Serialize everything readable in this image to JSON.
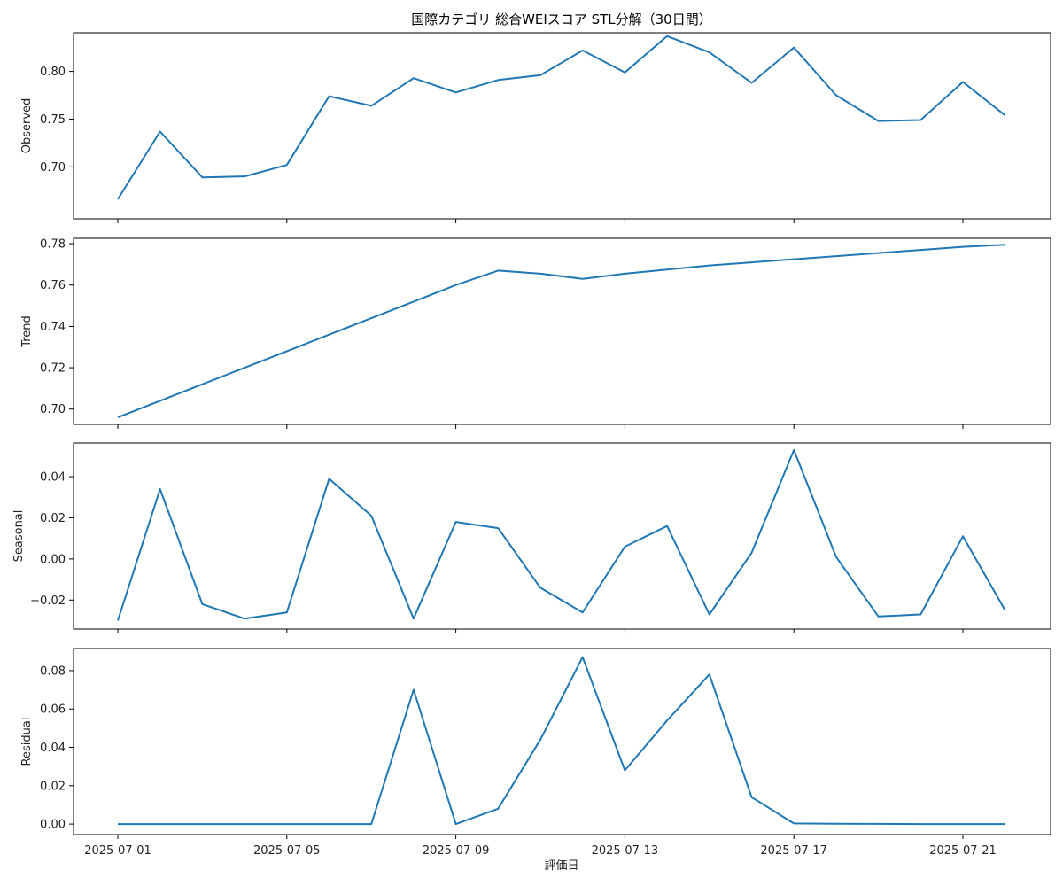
{
  "chart_data": {
    "type": "line",
    "title": "国際カテゴリ 総合WEIスコア STL分解（30日間）",
    "xlabel": "評価日",
    "x": [
      "2025-07-01",
      "2025-07-02",
      "2025-07-03",
      "2025-07-04",
      "2025-07-05",
      "2025-07-06",
      "2025-07-07",
      "2025-07-08",
      "2025-07-09",
      "2025-07-10",
      "2025-07-11",
      "2025-07-12",
      "2025-07-13",
      "2025-07-14",
      "2025-07-15",
      "2025-07-16",
      "2025-07-17",
      "2025-07-18",
      "2025-07-19",
      "2025-07-20",
      "2025-07-21",
      "2025-07-22"
    ],
    "x_ticks": [
      "2025-07-01",
      "2025-07-05",
      "2025-07-09",
      "2025-07-13",
      "2025-07-17",
      "2025-07-21"
    ],
    "color": "#1f77b4",
    "grid": false,
    "panels": [
      {
        "name": "Observed",
        "ylabel": "Observed",
        "ylim": [
          0.6455,
          0.8405
        ],
        "yticks": [
          0.7,
          0.75,
          0.8
        ],
        "ytick_labels": [
          "0.70",
          "0.75",
          "0.80"
        ],
        "values": [
          0.666,
          0.737,
          0.689,
          0.69,
          0.702,
          0.774,
          0.764,
          0.793,
          0.778,
          0.791,
          0.796,
          0.822,
          0.799,
          0.837,
          0.82,
          0.788,
          0.825,
          0.775,
          0.748,
          0.749,
          0.789,
          0.754
        ]
      },
      {
        "name": "Trend",
        "ylabel": "Trend",
        "ylim": [
          0.6926,
          0.7826
        ],
        "yticks": [
          0.7,
          0.72,
          0.74,
          0.76,
          0.78
        ],
        "ytick_labels": [
          "0.70",
          "0.72",
          "0.74",
          "0.76",
          "0.78"
        ],
        "values": [
          0.696,
          0.704,
          0.712,
          0.72,
          0.728,
          0.736,
          0.744,
          0.752,
          0.76,
          0.767,
          0.7655,
          0.763,
          0.7655,
          0.7675,
          0.7695,
          0.771,
          0.7725,
          0.774,
          0.7755,
          0.777,
          0.7785,
          0.7795
        ]
      },
      {
        "name": "Seasonal",
        "ylabel": "Seasonal",
        "ylim": [
          -0.0341,
          0.0564
        ],
        "yticks": [
          -0.02,
          0.0,
          0.02,
          0.04
        ],
        "ytick_labels": [
          "−0.02",
          "0.00",
          "0.02",
          "0.04"
        ],
        "values": [
          -0.03,
          0.034,
          -0.022,
          -0.029,
          -0.026,
          0.039,
          0.021,
          -0.029,
          0.018,
          0.015,
          -0.014,
          -0.026,
          0.006,
          0.016,
          -0.027,
          0.003,
          0.053,
          0.001,
          -0.028,
          -0.027,
          0.011,
          -0.025
        ]
      },
      {
        "name": "Residual",
        "ylabel": "Residual",
        "ylim": [
          -0.0055,
          0.0915
        ],
        "yticks": [
          0.0,
          0.02,
          0.04,
          0.06,
          0.08
        ],
        "ytick_labels": [
          "0.00",
          "0.02",
          "0.04",
          "0.06",
          "0.08"
        ],
        "values": [
          0,
          0,
          0,
          0,
          0,
          0,
          0,
          0.07,
          0,
          0.008,
          0.044,
          0.087,
          0.028,
          0.054,
          0.078,
          0.014,
          0.0003,
          0.0002,
          0.0001,
          0,
          0,
          0
        ]
      }
    ]
  }
}
